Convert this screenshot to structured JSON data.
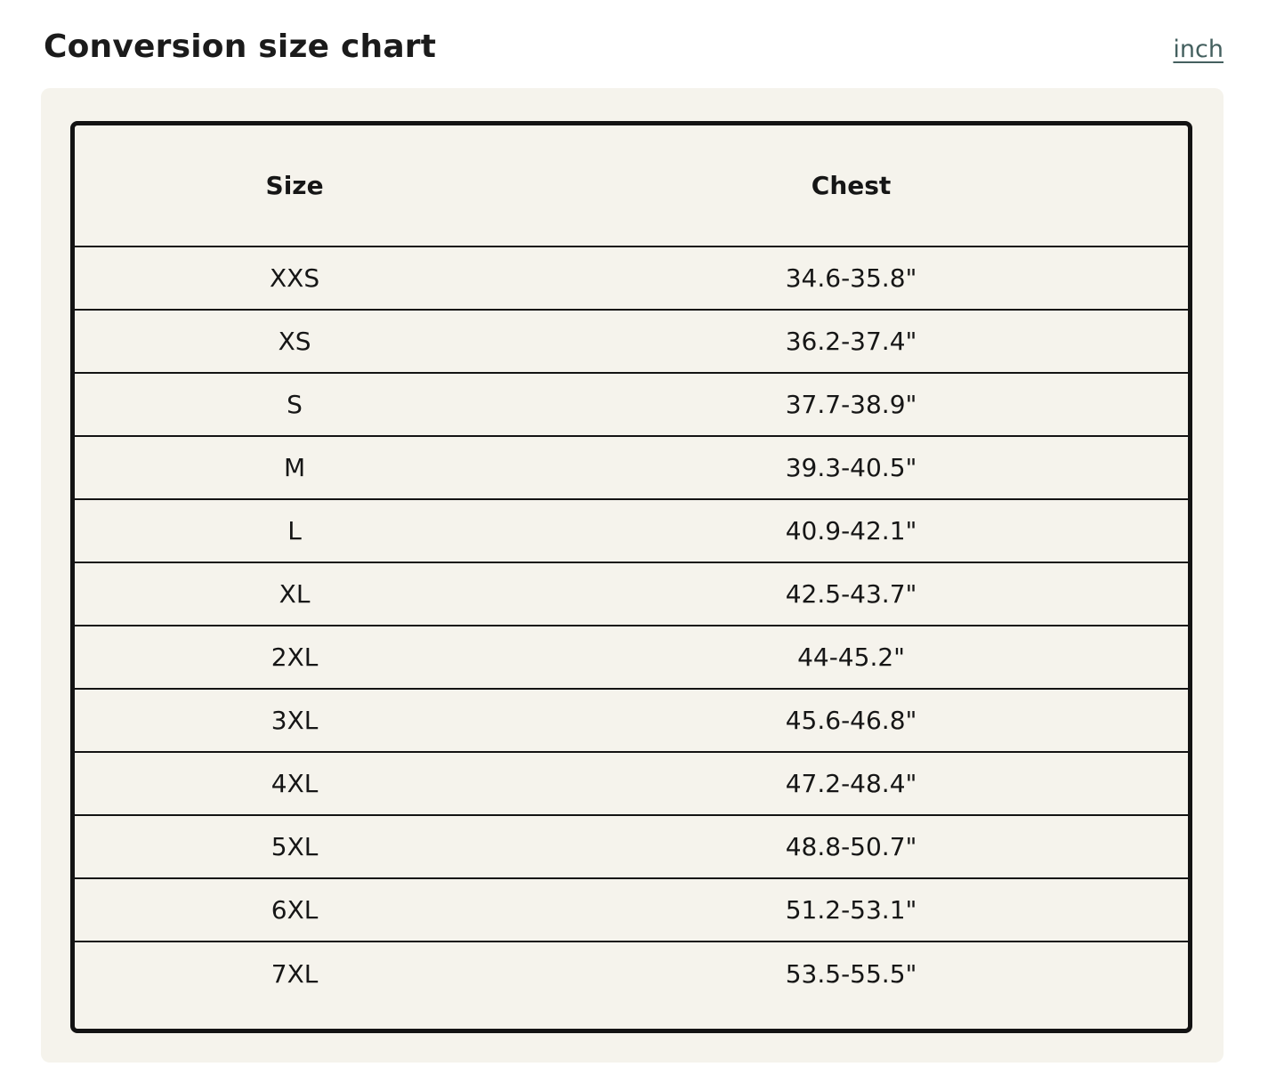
{
  "page": {
    "title": "Conversion size chart",
    "unit_link_label": "inch"
  },
  "table": {
    "columns": [
      "Size",
      "Chest"
    ],
    "rows": [
      {
        "size": "XXS",
        "chest": "34.6-35.8\""
      },
      {
        "size": "XS",
        "chest": "36.2-37.4\""
      },
      {
        "size": "S",
        "chest": "37.7-38.9\""
      },
      {
        "size": "M",
        "chest": "39.3-40.5\""
      },
      {
        "size": "L",
        "chest": "40.9-42.1\""
      },
      {
        "size": "XL",
        "chest": "42.5-43.7\""
      },
      {
        "size": "2XL",
        "chest": "44-45.2\""
      },
      {
        "size": "3XL",
        "chest": "45.6-46.8\""
      },
      {
        "size": "4XL",
        "chest": "47.2-48.4\""
      },
      {
        "size": "5XL",
        "chest": "48.8-50.7\""
      },
      {
        "size": "6XL",
        "chest": "51.2-53.1\""
      },
      {
        "size": "7XL",
        "chest": "53.5-55.5\""
      }
    ]
  },
  "colors": {
    "panel_bg": "#f5f3ec",
    "border_color": "#131313",
    "text_color": "#161616",
    "link_color": "#44605f",
    "page_bg": "#ffffff"
  }
}
